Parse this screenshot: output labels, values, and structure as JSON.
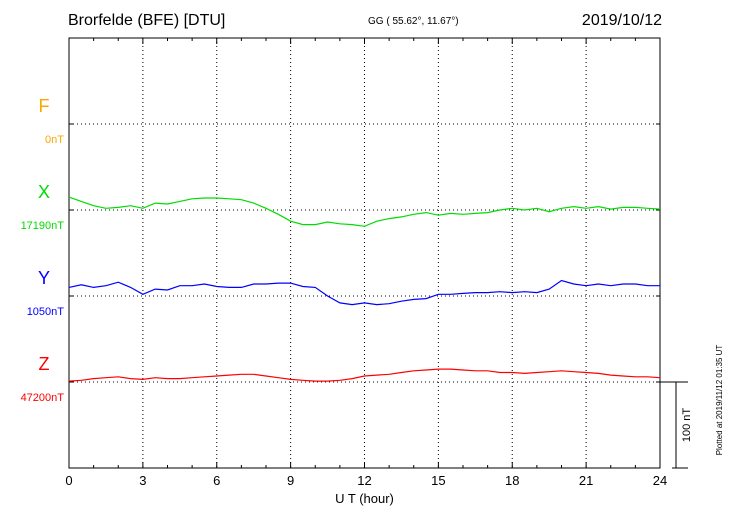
{
  "header": {
    "station": "Brorfelde (BFE)  [DTU]",
    "coords": "GG ( 55.62°,  11.67°)",
    "date": "2019/10/12"
  },
  "footer": {
    "plotted_note": "Plotted at 2019/11/12 01:35 UT",
    "scale_label": "100 nT"
  },
  "chart_data": {
    "type": "line",
    "xlabel": "U T (hour)",
    "xlim": [
      0,
      24
    ],
    "x_ticks": [
      "0",
      "3",
      "6",
      "9",
      "12",
      "15",
      "18",
      "21",
      "24"
    ],
    "grid": true,
    "scale_nT_per_band": 100,
    "channels": [
      {
        "name": "F",
        "baseline": "0nT",
        "color": "#ffa500",
        "values": []
      },
      {
        "name": "X",
        "baseline": "17190nT",
        "color": "#00dd00",
        "x": [
          0,
          0.5,
          1,
          1.5,
          2,
          2.5,
          3,
          3.5,
          4,
          4.5,
          5,
          5.5,
          6,
          6.5,
          7,
          7.5,
          8,
          8.5,
          9,
          9.5,
          10,
          10.5,
          11,
          11.5,
          12,
          12.5,
          13,
          13.5,
          14,
          14.5,
          15,
          15.5,
          16,
          16.5,
          17,
          17.5,
          18,
          18.5,
          19,
          19.5,
          20,
          20.5,
          21,
          21.5,
          22,
          22.5,
          23,
          23.5,
          24
        ],
        "values": [
          15,
          10,
          5,
          2,
          3,
          5,
          2,
          8,
          7,
          10,
          13,
          14,
          14,
          13,
          12,
          8,
          2,
          -5,
          -13,
          -17,
          -17,
          -14,
          -16,
          -17,
          -19,
          -13,
          -10,
          -8,
          -5,
          -3,
          -6,
          -4,
          -5,
          -4,
          -3,
          0,
          2,
          0,
          2,
          -2,
          2,
          4,
          2,
          4,
          1,
          3,
          3,
          2,
          1
        ]
      },
      {
        "name": "Y",
        "baseline": "1050nT",
        "color": "#0000ff",
        "x": [
          0,
          0.5,
          1,
          1.5,
          2,
          2.5,
          3,
          3.5,
          4,
          4.5,
          5,
          5.5,
          6,
          6.5,
          7,
          7.5,
          8,
          8.5,
          9,
          9.5,
          10,
          10.5,
          11,
          11.5,
          12,
          12.5,
          13,
          13.5,
          14,
          14.5,
          15,
          15.5,
          16,
          16.5,
          17,
          17.5,
          18,
          18.5,
          19,
          19.5,
          20,
          20.5,
          21,
          21.5,
          22,
          22.5,
          23,
          23.5,
          24
        ],
        "values": [
          10,
          13,
          10,
          12,
          16,
          10,
          2,
          8,
          7,
          12,
          12,
          14,
          11,
          10,
          10,
          14,
          14,
          15,
          15,
          11,
          10,
          0,
          -8,
          -10,
          -8,
          -10,
          -9,
          -6,
          -4,
          -3,
          2,
          2,
          3,
          4,
          4,
          5,
          4,
          5,
          4,
          8,
          18,
          14,
          12,
          14,
          12,
          14,
          14,
          12,
          12
        ]
      },
      {
        "name": "Z",
        "baseline": "47200nT",
        "color": "#ff0000",
        "x": [
          0,
          0.5,
          1,
          1.5,
          2,
          2.5,
          3,
          3.5,
          4,
          4.5,
          5,
          5.5,
          6,
          6.5,
          7,
          7.5,
          8,
          8.5,
          9,
          9.5,
          10,
          10.5,
          11,
          11.5,
          12,
          12.5,
          13,
          13.5,
          14,
          14.5,
          15,
          15.5,
          16,
          16.5,
          17,
          17.5,
          18,
          18.5,
          19,
          19.5,
          20,
          20.5,
          21,
          21.5,
          22,
          22.5,
          23,
          23.5,
          24
        ],
        "values": [
          1,
          2,
          4,
          5,
          6,
          4,
          3,
          5,
          4,
          4,
          5,
          6,
          7,
          8,
          9,
          9,
          7,
          5,
          3,
          2,
          1,
          1,
          2,
          4,
          7,
          8,
          9,
          11,
          13,
          14,
          15,
          15,
          14,
          13,
          13,
          11,
          11,
          10,
          11,
          12,
          13,
          12,
          11,
          10,
          8,
          7,
          6,
          6,
          5
        ]
      }
    ]
  }
}
